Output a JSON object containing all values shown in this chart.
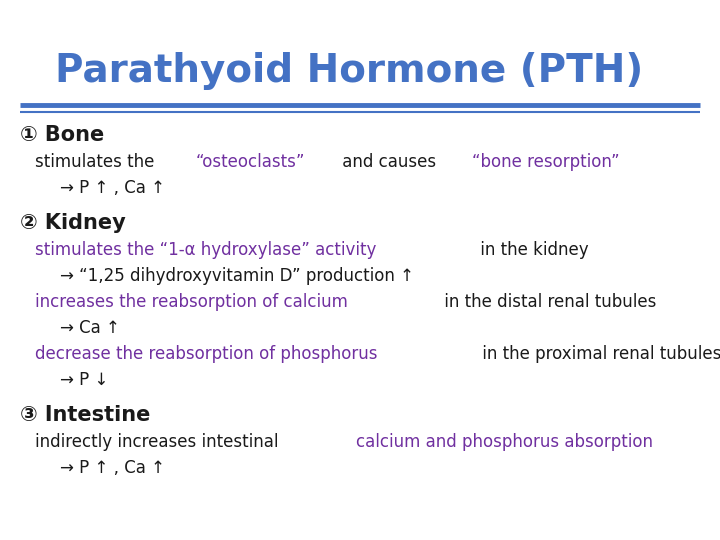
{
  "title": "Parathyoid Hormone (PTH)",
  "title_color": "#4472C4",
  "title_fontsize": 28,
  "bg_color": "#FFFFFF",
  "rule_color": "#4472C4",
  "black": "#1A1A1A",
  "purple": "#7030A0",
  "section_fontsize": 15,
  "body_fontsize": 12,
  "sections": [
    {
      "number": "①",
      "heading": " Bone",
      "lines": [
        {
          "indent": 35,
          "parts": [
            {
              "text": "stimulates the ",
              "color": "#1A1A1A"
            },
            {
              "text": "“osteoclasts”",
              "color": "#7030A0"
            },
            {
              "text": " and causes ",
              "color": "#1A1A1A"
            },
            {
              "text": "“bone resorption”",
              "color": "#7030A0"
            }
          ]
        },
        {
          "indent": 60,
          "parts": [
            {
              "text": "→ P ↑ , Ca ↑",
              "color": "#1A1A1A"
            }
          ]
        }
      ]
    },
    {
      "number": "②",
      "heading": " Kidney",
      "lines": [
        {
          "indent": 35,
          "parts": [
            {
              "text": "stimulates the “1-α hydroxylase” activity",
              "color": "#7030A0"
            },
            {
              "text": " in the kidney",
              "color": "#1A1A1A"
            }
          ]
        },
        {
          "indent": 60,
          "parts": [
            {
              "text": "→ “1,25 dihydroxyvitamin D” production ↑",
              "color": "#1A1A1A"
            }
          ]
        },
        {
          "indent": 35,
          "parts": [
            {
              "text": "increases the reabsorption of calcium",
              "color": "#7030A0"
            },
            {
              "text": " in the distal renal tubules",
              "color": "#1A1A1A"
            }
          ]
        },
        {
          "indent": 60,
          "parts": [
            {
              "text": "→ Ca ↑",
              "color": "#1A1A1A"
            }
          ]
        },
        {
          "indent": 35,
          "parts": [
            {
              "text": "decrease the reabsorption of phosphorus",
              "color": "#7030A0"
            },
            {
              "text": " in the proximal renal tubules",
              "color": "#1A1A1A"
            }
          ]
        },
        {
          "indent": 60,
          "parts": [
            {
              "text": "→ P ↓",
              "color": "#1A1A1A"
            }
          ]
        }
      ]
    },
    {
      "number": "③",
      "heading": " Intestine",
      "lines": [
        {
          "indent": 35,
          "parts": [
            {
              "text": "indirectly increases intestinal ",
              "color": "#1A1A1A"
            },
            {
              "text": "calcium and phosphorus absorption",
              "color": "#7030A0"
            }
          ]
        },
        {
          "indent": 60,
          "parts": [
            {
              "text": "→ P ↑ , Ca ↑",
              "color": "#1A1A1A"
            }
          ]
        }
      ]
    }
  ]
}
